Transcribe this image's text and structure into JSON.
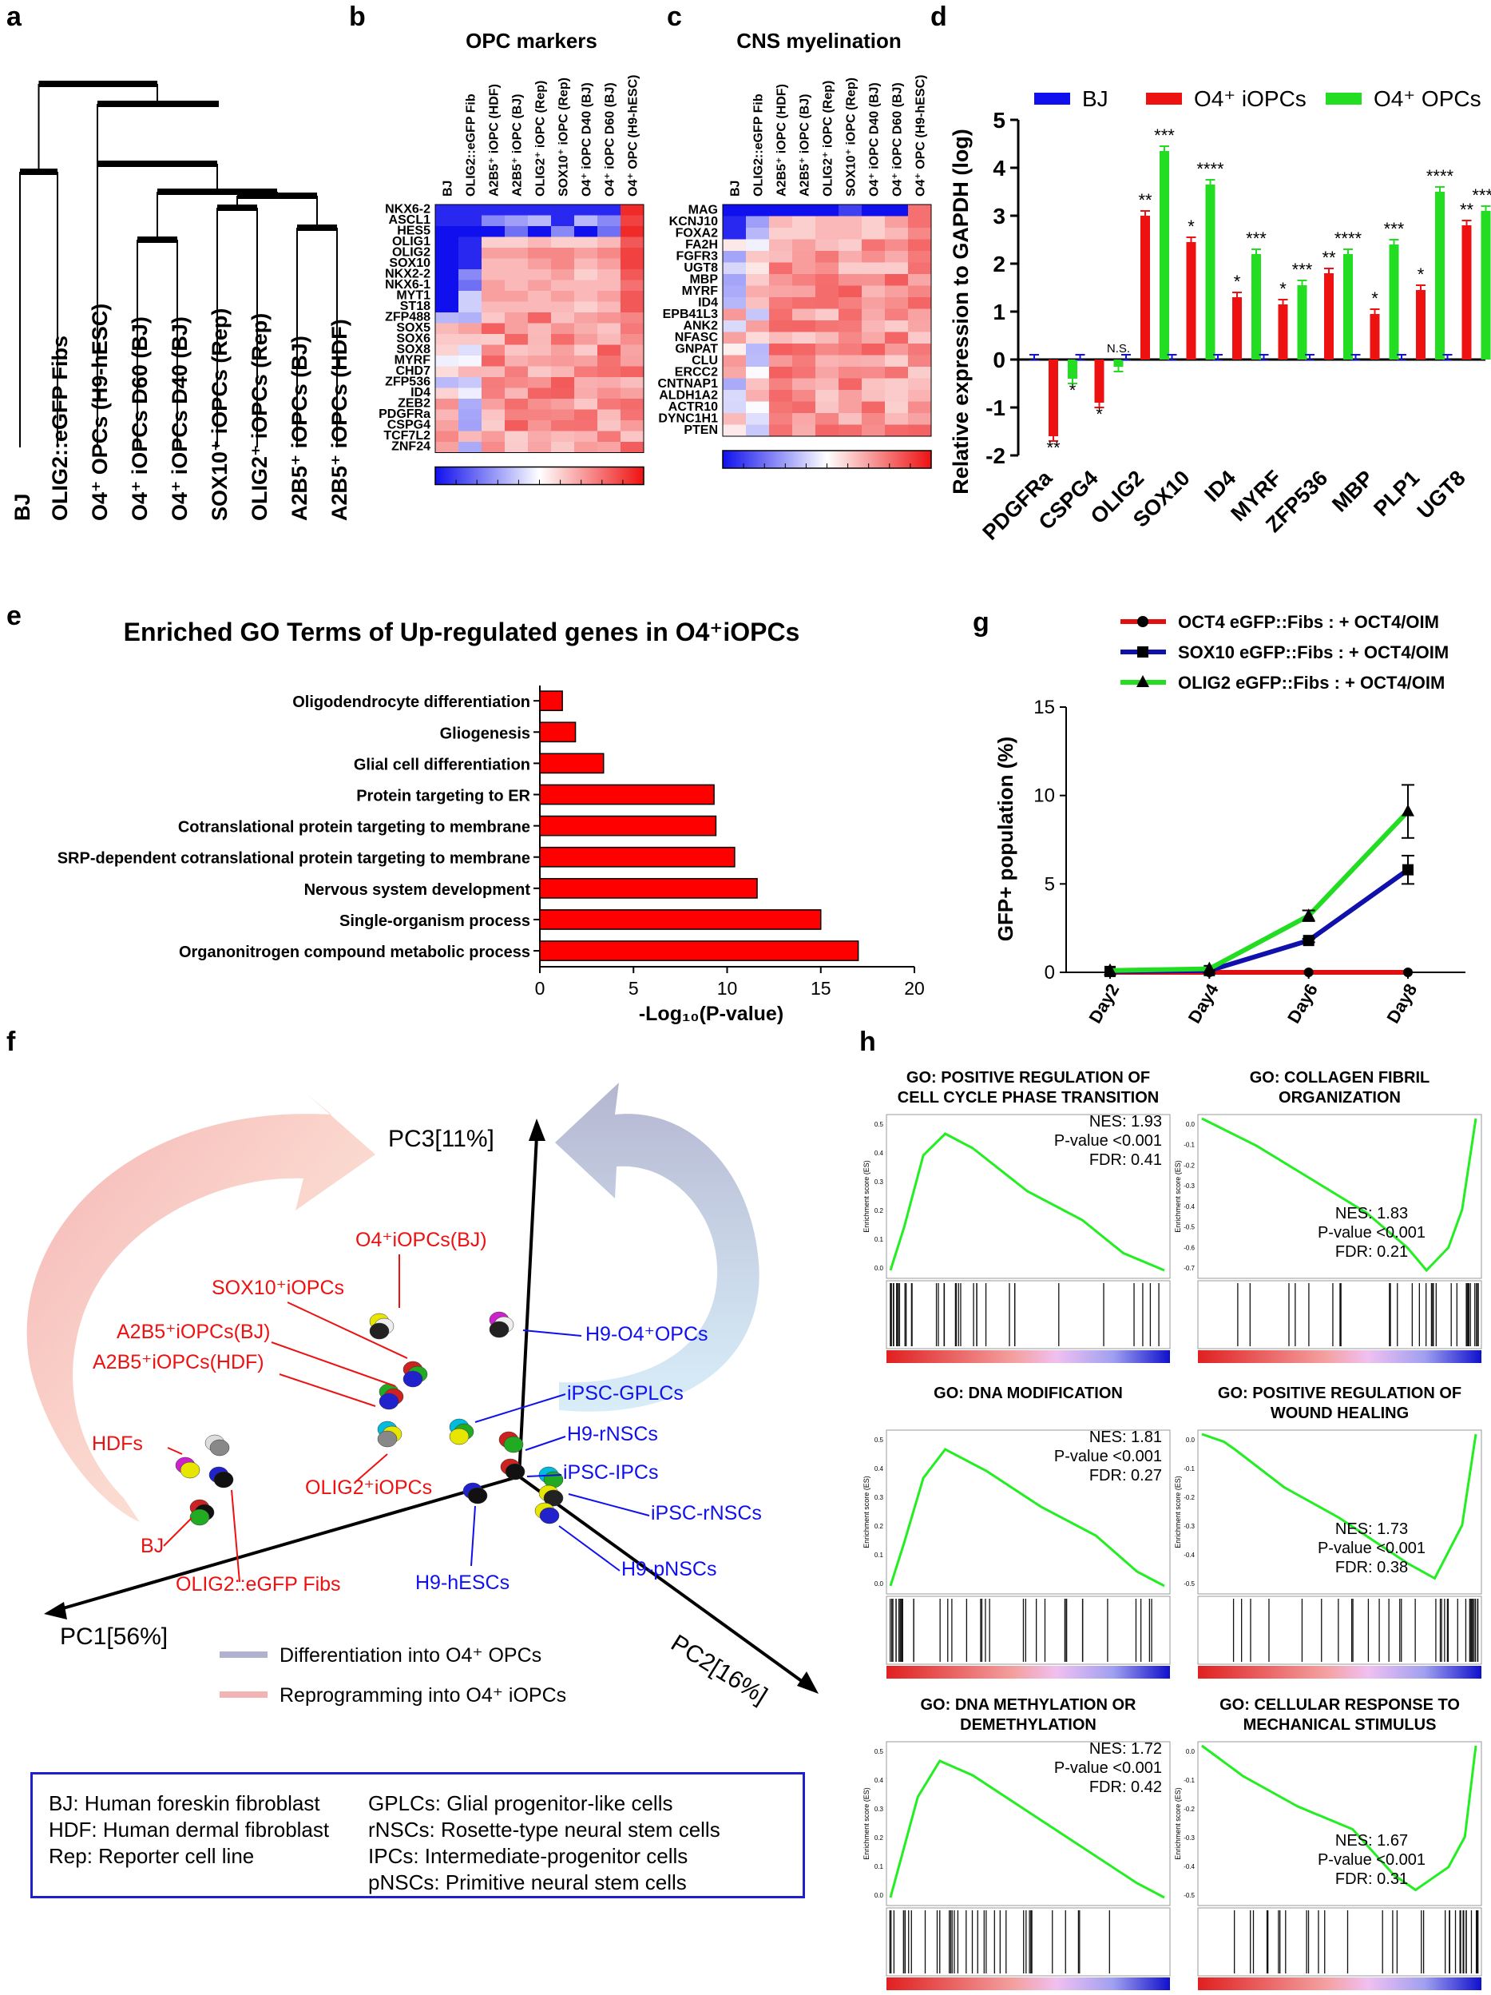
{
  "panel_letters": {
    "a": "a",
    "b": "b",
    "c": "c",
    "d": "d",
    "e": "e",
    "f": "f",
    "g": "g",
    "h": "h"
  },
  "colors": {
    "blue": "#1010ee",
    "red": "#ee1111",
    "green": "#22dd22",
    "dark_red": "#e01010",
    "navy": "#1010aa"
  },
  "dendrogram": {
    "samples": [
      "BJ",
      "OLIG2::eGFP Fibs",
      "O4⁺ OPCs (H9-hESC)",
      "O4⁺ iOPCs D60 (BJ)",
      "O4⁺ iOPCs D40 (BJ)",
      "SOX10⁺ iOPCs (Rep)",
      "OLIG2⁺ iOPCs (Rep)",
      "A2B5⁺ iOPCs (BJ)",
      "A2B5⁺ iOPCs (HDF)"
    ]
  },
  "heatmap_columns": [
    "BJ",
    "OLIG2::eGFP Fib",
    "A2B5⁺ iOPC (HDF)",
    "A2B5⁺ iOPC (BJ)",
    "OLIG2⁺ iOPC (Rep)",
    "SOX10⁺ iOPC (Rep)",
    "O4⁺ iOPC D40 (BJ)",
    "O4⁺ iOPC D60 (BJ)",
    "O4⁺ OPC (H9-hESC)"
  ],
  "heatmap_b": {
    "title": "OPC markers",
    "genes": [
      "NKX6-2",
      "ASCL1",
      "HES5",
      "OLIG1",
      "OLIG2",
      "SOX10",
      "NKX2-2",
      "NKX6-1",
      "MYT1",
      "ST18",
      "ZFP488",
      "SOX5",
      "SOX6",
      "SOX8",
      "MYRF",
      "CHD7",
      "ZFP536",
      "ID4",
      "ZEB2",
      "PDGFRa",
      "CSPG4",
      "TCF7L2",
      "ZNF24"
    ]
  },
  "heatmap_c": {
    "title": "CNS myelination",
    "genes": [
      "MAG",
      "KCNJ10",
      "FOXA2",
      "FA2H",
      "FGFR3",
      "UGT8",
      "MBP",
      "MYRF",
      "ID4",
      "EPB41L3",
      "ANK2",
      "NFASC",
      "GNPAT",
      "CLU",
      "ERCC2",
      "CNTNAP1",
      "ALDH1A2",
      "ACTR10",
      "DYNC1H1",
      "PTEN"
    ]
  },
  "chart_data": [
    {
      "panel": "d",
      "type": "bar",
      "ylabel": "Relative expression to GAPDH (log)",
      "ylim": [
        -2,
        5
      ],
      "yticks": [
        "-2",
        "-1",
        "0",
        "1",
        "2",
        "3",
        "4",
        "5"
      ],
      "categories": [
        "PDGFRa",
        "CSPG4",
        "OLIG2",
        "SOX10",
        "ID4",
        "MYRF",
        "ZFP536",
        "MBP",
        "PLP1",
        "UGT8"
      ],
      "series": [
        {
          "name": "BJ",
          "values": [
            0,
            0,
            0,
            0,
            0,
            0,
            0,
            0,
            0,
            0
          ]
        },
        {
          "name": "O4⁺ iOPCs",
          "values": [
            -1.6,
            -0.9,
            3.0,
            2.45,
            1.3,
            1.15,
            1.8,
            0.95,
            1.45,
            2.8
          ],
          "sig": [
            "**",
            "*",
            "**",
            "*",
            "*",
            "*",
            "**",
            "*",
            "*",
            "**"
          ]
        },
        {
          "name": "O4⁺ OPCs",
          "values": [
            -0.4,
            -0.15,
            4.35,
            3.65,
            2.2,
            1.55,
            2.2,
            2.4,
            3.5,
            3.1
          ],
          "sig": [
            "*",
            "N.S.",
            "***",
            "****",
            "***",
            "***",
            "****",
            "***",
            "****",
            "****"
          ]
        }
      ]
    },
    {
      "panel": "e",
      "type": "bar",
      "title": "Enriched GO Terms of Up-regulated genes in O4⁺iOPCs",
      "xlabel": "-Log₁₀(P-value)",
      "xlim": [
        0,
        20
      ],
      "xticks": [
        "0",
        "5",
        "10",
        "15",
        "20"
      ],
      "categories": [
        "Oligodendrocyte differentiation",
        "Gliogenesis",
        "Glial cell differentiation",
        "Protein targeting to ER",
        "Cotranslational protein targeting to membrane",
        "SRP-dependent cotranslational protein targeting to membrane",
        "Nervous system development",
        "Single-organism process",
        "Organonitrogen compound metabolic process"
      ],
      "values": [
        1.2,
        1.9,
        3.4,
        9.3,
        9.4,
        10.4,
        11.6,
        15.0,
        17.0
      ]
    },
    {
      "panel": "g",
      "type": "line",
      "ylabel": "GFP+ population (%)",
      "ylim": [
        0,
        15
      ],
      "yticks": [
        "0",
        "5",
        "10",
        "15"
      ],
      "x": [
        "Day2",
        "Day4",
        "Day6",
        "Day8"
      ],
      "series": [
        {
          "name": "OCT4 eGFP::Fibs : + OCT4/OIM",
          "values": [
            0,
            0,
            0,
            0
          ],
          "err": [
            0,
            0,
            0,
            0
          ]
        },
        {
          "name": "SOX10 eGFP::Fibs : + OCT4/OIM",
          "values": [
            0.05,
            0.1,
            1.8,
            5.8
          ],
          "err": [
            0,
            0,
            0.1,
            0.8
          ]
        },
        {
          "name": "OLIG2 eGFP::Fibs : + OCT4/OIM",
          "values": [
            0.1,
            0.2,
            3.2,
            9.1
          ],
          "err": [
            0,
            0,
            0.3,
            1.5
          ]
        }
      ]
    },
    {
      "panel": "f",
      "type": "scatter",
      "axes": [
        "PC1[56%]",
        "PC2[16%]",
        "PC3[11%]"
      ],
      "red_labels": [
        "O4⁺iOPCs(BJ)",
        "SOX10⁺iOPCs",
        "A2B5⁺iOPCs(BJ)",
        "A2B5⁺iOPCs(HDF)",
        "HDFs",
        "OLIG2⁺iOPCs",
        "BJ",
        "OLIG2::eGFP Fibs"
      ],
      "blue_labels": [
        "H9-O4⁺OPCs",
        "iPSC-GPLCs",
        "H9-rNSCs",
        "iPSC-IPCs",
        "iPSC-rNSCs",
        "H9-pNSCs",
        "H9-hESCs"
      ],
      "legend": [
        "Differentiation into O4⁺ OPCs",
        "Reprogramming into O4⁺ iOPCs"
      ]
    }
  ],
  "gsea": [
    {
      "title1": "GO: POSITIVE REGULATION OF",
      "title2": "CELL CYCLE PHASE TRANSITION",
      "nes": "NES: 1.93",
      "p": "P-value <0.001",
      "fdr": "FDR: 0.41",
      "yticks": [
        "0.5",
        "0.4",
        "0.3",
        "0.2",
        "0.1",
        "0.0"
      ]
    },
    {
      "title1": "GO: COLLAGEN FIBRIL",
      "title2": "ORGANIZATION",
      "nes": "NES: 1.83",
      "p": "P-value <0.001",
      "fdr": "FDR: 0.21",
      "yticks": [
        "0.0",
        "-0.1",
        "-0.2",
        "-0.3",
        "-0.4",
        "-0.5",
        "-0.6",
        "-0.7"
      ]
    },
    {
      "title1": "GO: DNA MODIFICATION",
      "title2": "",
      "nes": "NES: 1.81",
      "p": "P-value <0.001",
      "fdr": "FDR: 0.27",
      "yticks": [
        "0.5",
        "0.4",
        "0.3",
        "0.2",
        "0.1",
        "0.0"
      ]
    },
    {
      "title1": "GO: POSITIVE REGULATION OF",
      "title2": "WOUND HEALING",
      "nes": "NES: 1.73",
      "p": "P-value <0.001",
      "fdr": "FDR: 0.38",
      "yticks": [
        "0.0",
        "-0.1",
        "-0.2",
        "-0.3",
        "-0.4",
        "-0.5"
      ]
    },
    {
      "title1": "GO: DNA METHYLATION OR",
      "title2": "DEMETHYLATION",
      "nes": "NES: 1.72",
      "p": "P-value <0.001",
      "fdr": "FDR: 0.42",
      "yticks": [
        "0.5",
        "0.4",
        "0.3",
        "0.2",
        "0.1",
        "0.0"
      ]
    },
    {
      "title1": "GO: CELLULAR RESPONSE TO",
      "title2": "MECHANICAL STIMULUS",
      "nes": "NES: 1.67",
      "p": "P-value <0.001",
      "fdr": "FDR: 0.31",
      "yticks": [
        "0.0",
        "-0.1",
        "-0.2",
        "-0.3",
        "-0.4",
        "-0.5"
      ]
    }
  ],
  "gsea_ylabel": "Enrichment score (ES)",
  "abbrev_left": [
    "BJ: Human foreskin fibroblast",
    "HDF: Human dermal fibroblast",
    "Rep: Reporter cell line"
  ],
  "abbrev_right": [
    "GPLCs: Glial progenitor-like cells",
    "rNSCs: Rosette-type neural stem cells",
    "IPCs: Intermediate-progenitor cells",
    "pNSCs: Primitive neural stem cells"
  ]
}
